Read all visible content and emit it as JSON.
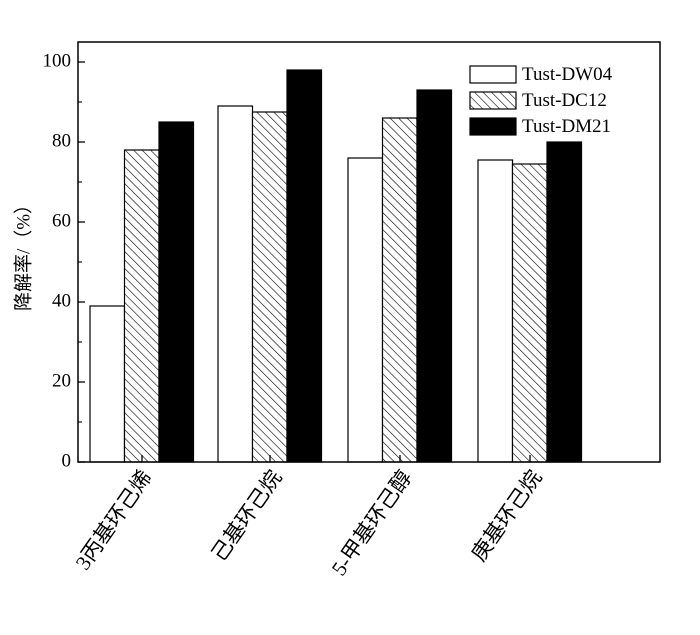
{
  "chart_data": {
    "type": "bar",
    "ylabel": "降解率/（%）",
    "xlabel": "",
    "ylim": [
      0,
      105
    ],
    "yticks": [
      "0",
      "20",
      "40",
      "60",
      "80",
      "100"
    ],
    "categories": [
      "3丙基环己烯",
      "己基环己烷",
      "5-甲基环己醇",
      "庚基环己烷"
    ],
    "series": [
      {
        "name": "Tust-DW04",
        "values": [
          39,
          89,
          76,
          75.5
        ]
      },
      {
        "name": "Tust-DC12",
        "values": [
          78,
          87.5,
          86,
          74.5
        ]
      },
      {
        "name": "Tust-DM21",
        "values": [
          85,
          98,
          93,
          80
        ]
      }
    ],
    "legend_position": "top-right",
    "grid": false,
    "colors": {
      "Tust-DW04": "#ffffff",
      "Tust-DC12": "hatched",
      "Tust-DM21": "#000000"
    }
  }
}
